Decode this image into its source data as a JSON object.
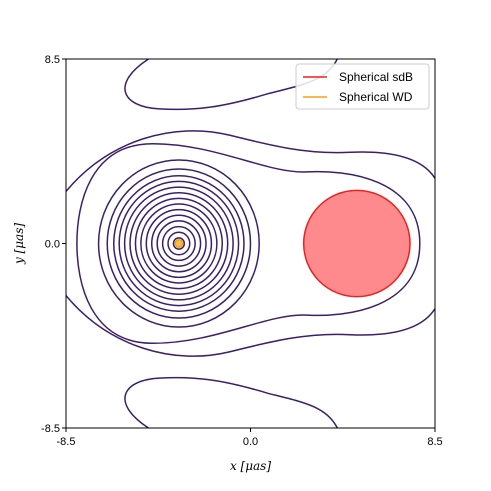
{
  "chart_data": {
    "type": "contour",
    "title": "",
    "xlabel": "x [μas]",
    "ylabel": "y [μas]",
    "xlim": [
      -8.5,
      8.5
    ],
    "ylim": [
      -8.5,
      8.5
    ],
    "xticks": [
      "-8.5",
      "0.0",
      "8.5"
    ],
    "yticks": [
      "-8.5",
      "0.0",
      "8.5"
    ],
    "grid": false,
    "legend_position": "top-right",
    "contour_color": "#3b1f6b",
    "contour_center": [
      -3.3,
      0.0
    ],
    "contour_ring_radii": [
      0.25,
      0.5,
      0.75,
      1.0,
      1.25,
      1.5,
      1.75,
      2.0,
      2.25,
      2.5,
      2.75,
      3.0,
      3.3,
      3.7
    ],
    "series": [
      {
        "name": "Spherical sdB",
        "type": "circle",
        "center": [
          4.9,
          0.0
        ],
        "radius": 2.45,
        "edge_color": "#e8231f",
        "fill_color": "#ff8a8e"
      },
      {
        "name": "Spherical WD",
        "type": "circle",
        "center": [
          -3.3,
          0.0
        ],
        "radius": 0.17,
        "edge_color": "#f5a10e",
        "fill_color": "#f5c04a"
      }
    ]
  }
}
